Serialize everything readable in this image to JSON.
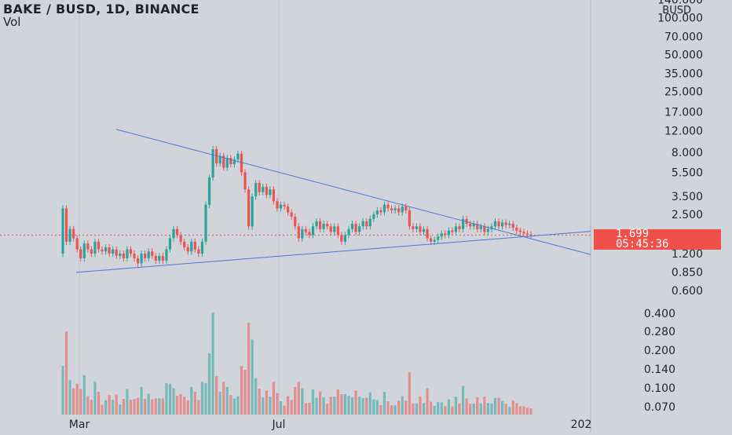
{
  "header": {
    "symbol": "BAKE / BUSD, 1D, BINANCE",
    "subtitle": "Vol"
  },
  "price_tag": {
    "price": "1.699",
    "countdown": "05:45:36",
    "color": "#f0504a"
  },
  "colors": {
    "up": "#26a69a",
    "down": "#ef5350",
    "trendline": "#4a78d8",
    "background": "#d2d4dc",
    "grid": "#bfc2cc",
    "text": "#1f2330"
  },
  "chart_data": {
    "type": "candlestick",
    "title": "BAKE / BUSD, 1D, BINANCE",
    "scale": "log",
    "currency_label": "BUSD",
    "y_ticks": [
      "140.000",
      "100.000",
      "70.000",
      "50.000",
      "35.000",
      "25.000",
      "17.000",
      "12.000",
      "8.000",
      "5.500",
      "3.500",
      "2.500",
      "1.699",
      "1.200",
      "0.850",
      "0.600"
    ],
    "volume_ticks": [
      "0.400",
      "0.280",
      "0.200",
      "0.140",
      "0.100",
      "0.070"
    ],
    "x_ticks": [
      "Mar",
      "Jul",
      "202"
    ],
    "last_price": 1.699,
    "grid": true,
    "series": [
      {
        "name": "BAKE / BUSD",
        "points": [
          [
            0,
            1.2,
            2.8
          ],
          [
            1,
            2.8,
            1.5
          ],
          [
            2,
            1.5,
            1.9
          ],
          [
            3,
            1.9,
            1.6
          ],
          [
            4,
            1.6,
            1.3
          ],
          [
            5,
            1.3,
            1.1
          ],
          [
            6,
            1.1,
            1.45
          ],
          [
            7,
            1.45,
            1.3
          ],
          [
            8,
            1.3,
            1.2
          ],
          [
            9,
            1.2,
            1.5
          ],
          [
            10,
            1.5,
            1.3
          ],
          [
            11,
            1.3,
            1.25
          ],
          [
            12,
            1.25,
            1.35
          ],
          [
            13,
            1.35,
            1.2
          ],
          [
            14,
            1.2,
            1.3
          ],
          [
            15,
            1.3,
            1.15
          ],
          [
            16,
            1.15,
            1.2
          ],
          [
            17,
            1.2,
            1.1
          ],
          [
            18,
            1.1,
            1.3
          ],
          [
            19,
            1.3,
            1.2
          ],
          [
            20,
            1.2,
            1.1
          ],
          [
            21,
            1.1,
            1.0
          ],
          [
            22,
            1.0,
            1.2
          ],
          [
            23,
            1.2,
            1.1
          ],
          [
            24,
            1.1,
            1.25
          ],
          [
            25,
            1.25,
            1.15
          ],
          [
            26,
            1.15,
            1.05
          ],
          [
            27,
            1.05,
            1.15
          ],
          [
            28,
            1.15,
            1.05
          ],
          [
            29,
            1.05,
            1.3
          ],
          [
            30,
            1.3,
            1.6
          ],
          [
            31,
            1.6,
            1.9
          ],
          [
            32,
            1.9,
            1.7
          ],
          [
            33,
            1.7,
            1.5
          ],
          [
            34,
            1.5,
            1.35
          ],
          [
            35,
            1.35,
            1.25
          ],
          [
            36,
            1.25,
            1.5
          ],
          [
            37,
            1.5,
            1.3
          ],
          [
            38,
            1.3,
            1.2
          ],
          [
            39,
            1.2,
            1.5
          ],
          [
            40,
            1.5,
            3.0
          ],
          [
            41,
            3.0,
            5.0
          ],
          [
            42,
            5.0,
            8.5
          ],
          [
            43,
            8.5,
            6.5
          ],
          [
            44,
            6.5,
            7.5
          ],
          [
            45,
            7.5,
            6.0
          ],
          [
            46,
            6.0,
            7.2
          ],
          [
            47,
            7.2,
            6.4
          ],
          [
            48,
            6.4,
            7.0
          ],
          [
            49,
            7.0,
            7.8
          ],
          [
            50,
            7.8,
            5.5
          ],
          [
            51,
            5.5,
            4.0
          ],
          [
            52,
            4.0,
            2.0
          ],
          [
            53,
            2.0,
            3.5
          ],
          [
            54,
            3.5,
            4.5
          ],
          [
            55,
            4.5,
            3.8
          ],
          [
            56,
            3.8,
            4.2
          ],
          [
            57,
            4.2,
            3.6
          ],
          [
            58,
            3.6,
            4.0
          ],
          [
            59,
            4.0,
            3.2
          ],
          [
            60,
            3.2,
            2.8
          ],
          [
            61,
            2.8,
            3.0
          ],
          [
            62,
            3.0,
            2.9
          ],
          [
            63,
            2.9,
            2.6
          ],
          [
            64,
            2.6,
            2.4
          ],
          [
            65,
            2.4,
            2.0
          ],
          [
            66,
            2.0,
            1.6
          ],
          [
            67,
            1.6,
            1.9
          ],
          [
            68,
            1.9,
            1.8
          ],
          [
            69,
            1.8,
            1.7
          ],
          [
            70,
            1.7,
            2.0
          ],
          [
            71,
            2.0,
            2.2
          ],
          [
            72,
            2.2,
            1.9
          ],
          [
            73,
            1.9,
            2.1
          ],
          [
            74,
            2.1,
            2.0
          ],
          [
            75,
            2.0,
            1.8
          ],
          [
            76,
            1.8,
            2.0
          ],
          [
            77,
            2.0,
            1.7
          ],
          [
            78,
            1.7,
            1.5
          ],
          [
            79,
            1.5,
            1.7
          ],
          [
            80,
            1.7,
            1.9
          ],
          [
            81,
            1.9,
            2.1
          ],
          [
            82,
            2.1,
            1.8
          ],
          [
            83,
            1.8,
            2.0
          ],
          [
            84,
            2.0,
            2.2
          ],
          [
            85,
            2.2,
            2.0
          ],
          [
            86,
            2.0,
            2.3
          ],
          [
            87,
            2.3,
            2.5
          ],
          [
            88,
            2.5,
            2.7
          ],
          [
            89,
            2.7,
            2.6
          ],
          [
            90,
            2.6,
            3.0
          ],
          [
            91,
            3.0,
            2.8
          ],
          [
            92,
            2.8,
            2.7
          ],
          [
            93,
            2.7,
            2.8
          ],
          [
            94,
            2.8,
            2.6
          ],
          [
            95,
            2.6,
            2.9
          ],
          [
            96,
            2.9,
            2.7
          ],
          [
            97,
            2.7,
            2.0
          ],
          [
            98,
            2.0,
            1.9
          ],
          [
            99,
            1.9,
            2.0
          ],
          [
            100,
            2.0,
            1.8
          ],
          [
            101,
            1.8,
            1.9
          ],
          [
            102,
            1.9,
            1.6
          ],
          [
            103,
            1.6,
            1.5
          ],
          [
            104,
            1.5,
            1.55
          ],
          [
            105,
            1.55,
            1.65
          ],
          [
            106,
            1.65,
            1.75
          ],
          [
            107,
            1.75,
            1.7
          ],
          [
            108,
            1.7,
            1.85
          ],
          [
            109,
            1.85,
            1.8
          ],
          [
            110,
            1.8,
            2.0
          ],
          [
            111,
            2.0,
            1.9
          ],
          [
            112,
            1.9,
            2.3
          ],
          [
            113,
            2.3,
            2.1
          ],
          [
            114,
            2.1,
            2.0
          ],
          [
            115,
            2.0,
            2.1
          ],
          [
            116,
            2.1,
            1.9
          ],
          [
            117,
            1.9,
            2.0
          ],
          [
            118,
            2.0,
            1.8
          ],
          [
            119,
            1.8,
            1.9
          ],
          [
            120,
            1.9,
            2.0
          ],
          [
            121,
            2.0,
            2.2
          ],
          [
            122,
            2.2,
            2.0
          ],
          [
            123,
            2.0,
            2.15
          ],
          [
            124,
            2.15,
            2.05
          ],
          [
            125,
            2.05,
            2.1
          ],
          [
            126,
            2.1,
            1.95
          ],
          [
            127,
            1.95,
            1.85
          ],
          [
            128,
            1.85,
            1.8
          ],
          [
            129,
            1.8,
            1.75
          ],
          [
            130,
            1.75,
            1.72
          ],
          [
            131,
            1.72,
            1.699
          ]
        ]
      }
    ]
  }
}
